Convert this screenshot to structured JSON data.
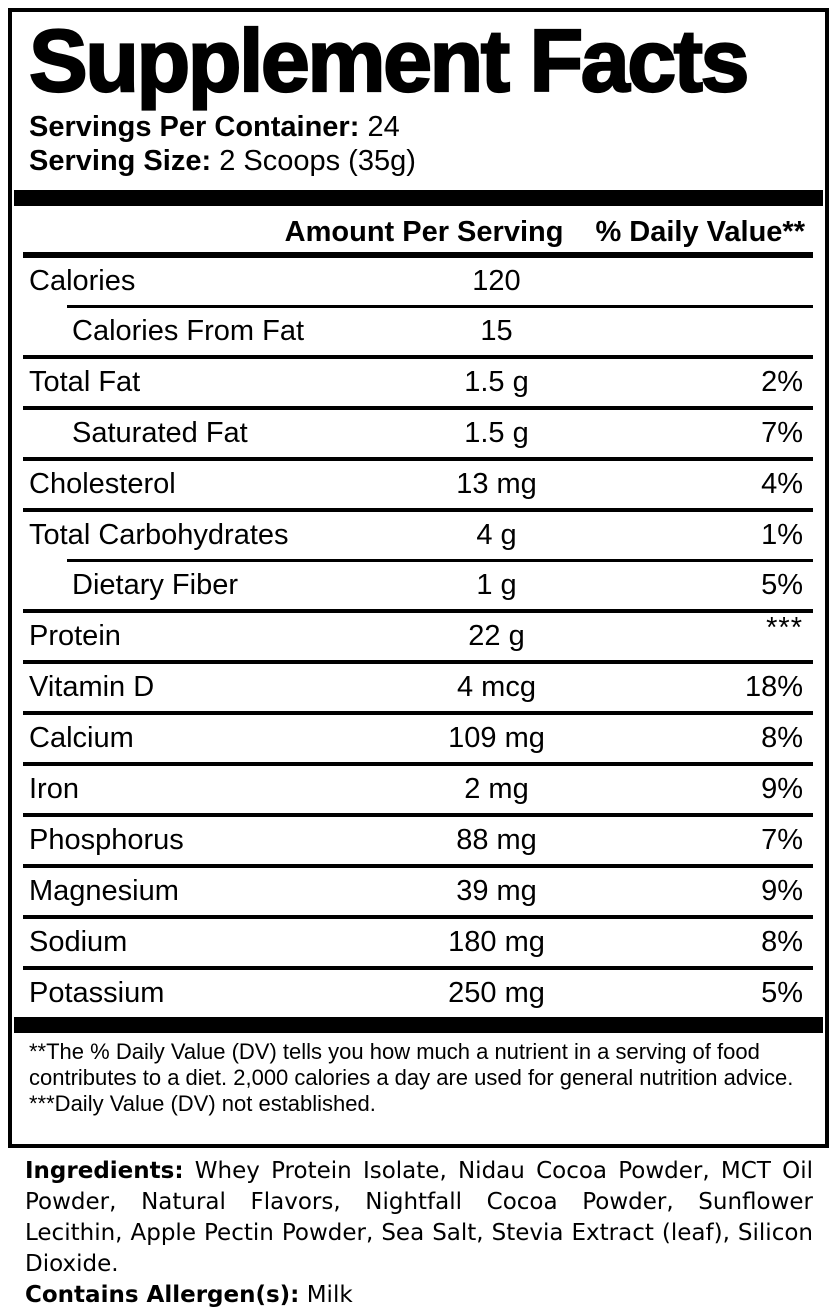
{
  "title": "Supplement Facts",
  "servings_per_container": {
    "label": "Servings Per Container:",
    "value": "24"
  },
  "serving_size": {
    "label": "Serving Size:",
    "value": "2 Scoops (35g)"
  },
  "table": {
    "header": {
      "amount": "Amount Per Serving",
      "dv": "% Daily Value**"
    },
    "rows": [
      {
        "name": "Calories",
        "amount": "120",
        "dv": ""
      },
      {
        "name": "Calories From Fat",
        "amount": "15",
        "dv": ""
      },
      {
        "name": "Total Fat",
        "amount": "1.5 g",
        "dv": "2%"
      },
      {
        "name": "Saturated Fat",
        "amount": "1.5 g",
        "dv": "7%"
      },
      {
        "name": "Cholesterol",
        "amount": "13 mg",
        "dv": "4%"
      },
      {
        "name": "Total Carbohydrates",
        "amount": "4 g",
        "dv": "1%"
      },
      {
        "name": "Dietary Fiber",
        "amount": "1 g",
        "dv": "5%"
      },
      {
        "name": "Protein",
        "amount": "22 g",
        "dv": "***"
      },
      {
        "name": "Vitamin D",
        "amount": "4 mcg",
        "dv": "18%"
      },
      {
        "name": "Calcium",
        "amount": "109 mg",
        "dv": "8%"
      },
      {
        "name": "Iron",
        "amount": "2 mg",
        "dv": "9%"
      },
      {
        "name": "Phosphorus",
        "amount": "88 mg",
        "dv": "7%"
      },
      {
        "name": "Magnesium",
        "amount": "39 mg",
        "dv": "9%"
      },
      {
        "name": "Sodium",
        "amount": "180 mg",
        "dv": "8%"
      },
      {
        "name": "Potassium",
        "amount": "250 mg",
        "dv": "5%"
      }
    ]
  },
  "footnotes": {
    "daily_value": "**The % Daily Value (DV) tells you how much a nutrient in a serving of food contributes to a diet. 2,000 calories a day are used for general nutrition advice.",
    "not_established": "***Daily Value (DV) not established."
  },
  "ingredients": {
    "label": "Ingredients:",
    "text": "Whey Protein Isolate, Nidau Cocoa Powder, MCT Oil Powder, Natural Flavors, Nightfall Cocoa Powder, Sunflower Lecithin, Apple Pectin Powder, Sea Salt, Stevia Extract (leaf), Silicon Dioxide."
  },
  "allergens": {
    "label": "Contains Allergen(s):",
    "value": "Milk"
  }
}
